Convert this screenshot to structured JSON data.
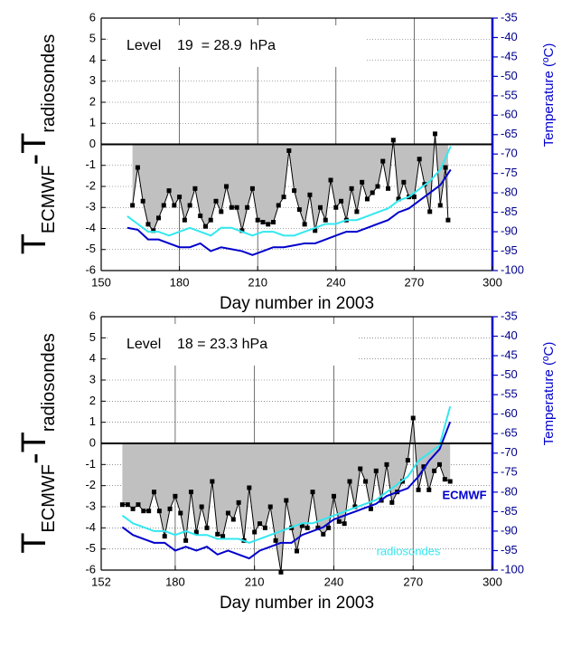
{
  "chart_data": [
    {
      "type": "line",
      "annotation": "Level    19  = 28.9  hPa",
      "xlabel": "Day number in 2003",
      "ylabel": [
        "T",
        "ECMWF",
        "-T",
        "radiosondes"
      ],
      "y2label": "Temperature (ºC)",
      "xlim": [
        150,
        300
      ],
      "xticks": [
        150,
        180,
        210,
        240,
        270,
        300
      ],
      "ylim": [
        -6,
        6
      ],
      "yticks": [
        -6,
        -5,
        -4,
        -3,
        -2,
        -1,
        0,
        1,
        2,
        3,
        4,
        5,
        6
      ],
      "y2lim": [
        -100,
        -35
      ],
      "y2ticks": [
        -100,
        -95,
        -90,
        -85,
        -80,
        -75,
        -70,
        -65,
        -60,
        -55,
        -50,
        -45,
        -40,
        -35
      ],
      "grid": true,
      "fill_color": "#c0c0c0",
      "series": [
        {
          "color": "#000000",
          "marker": "square",
          "fill": true,
          "x": [
            162,
            164,
            166,
            168,
            170,
            172,
            174,
            176,
            178,
            180,
            182,
            184,
            186,
            188,
            190,
            192,
            194,
            196,
            198,
            200,
            202,
            204,
            206,
            208,
            210,
            212,
            214,
            216,
            218,
            220,
            222,
            224,
            226,
            228,
            230,
            232,
            234,
            236,
            238,
            240,
            242,
            244,
            246,
            248,
            250,
            252,
            254,
            256,
            258,
            260,
            262,
            264,
            266,
            268,
            270,
            272,
            274,
            276,
            278,
            280,
            282,
            283
          ],
          "values": [
            -2.9,
            -1.1,
            -2.7,
            -3.8,
            -4.1,
            -3.5,
            -2.9,
            -2.2,
            -2.9,
            -2.5,
            -3.6,
            -2.9,
            -2.1,
            -3.4,
            -3.9,
            -3.6,
            -2.7,
            -3.2,
            -2.0,
            -3.0,
            -3.0,
            -4.1,
            -3.0,
            -2.1,
            -3.6,
            -3.7,
            -3.8,
            -3.7,
            -2.9,
            -2.5,
            -0.3,
            -2.2,
            -3.1,
            -3.8,
            -2.4,
            -4.1,
            -3.0,
            -3.6,
            -1.7,
            -3.0,
            -2.7,
            -3.6,
            -2.1,
            -3.2,
            -1.8,
            -2.6,
            -2.3,
            -2.0,
            -0.8,
            -2.1,
            0.2,
            -2.6,
            -1.8,
            -2.5,
            -2.5,
            -0.7,
            -1.9,
            -3.2,
            0.5,
            -2.9,
            -1.1,
            -3.6
          ]
        },
        {
          "color": "#0000cc",
          "axis": "y2",
          "x": [
            160,
            164,
            168,
            172,
            176,
            180,
            184,
            188,
            192,
            196,
            200,
            204,
            208,
            212,
            216,
            220,
            224,
            228,
            232,
            236,
            240,
            244,
            248,
            252,
            256,
            260,
            264,
            268,
            272,
            276,
            280,
            284
          ],
          "values": [
            -89,
            -89.5,
            -92,
            -92,
            -93,
            -94,
            -94,
            -93,
            -95,
            -94,
            -94.5,
            -95,
            -96,
            -95,
            -94,
            -94,
            -93.5,
            -93,
            -93,
            -92,
            -91,
            -90,
            -90,
            -89,
            -88,
            -87,
            -85,
            -84,
            -82,
            -80,
            -78,
            -74
          ]
        },
        {
          "color": "#33e8f0",
          "axis": "y2",
          "x": [
            160,
            164,
            168,
            172,
            176,
            180,
            184,
            188,
            192,
            196,
            200,
            204,
            208,
            212,
            216,
            220,
            224,
            228,
            232,
            236,
            240,
            244,
            248,
            252,
            256,
            260,
            264,
            268,
            272,
            276,
            280,
            284
          ],
          "values": [
            -86,
            -88,
            -90,
            -90,
            -91,
            -90,
            -89,
            -90,
            -91,
            -89,
            -89,
            -90,
            -91,
            -90,
            -90,
            -91,
            -91,
            -90,
            -89,
            -88,
            -88,
            -87,
            -87,
            -86,
            -85,
            -84,
            -82,
            -81,
            -79,
            -77,
            -74,
            -68
          ]
        }
      ]
    },
    {
      "type": "line",
      "annotation": "Level    18 = 23.3 hPa",
      "xlabel": "Day number in 2003",
      "ylabel": [
        "T",
        "ECMWF",
        "-T",
        "radiosondes"
      ],
      "y2label": "Temperature (ºC)",
      "xlim": [
        152,
        300
      ],
      "xticks": [
        152,
        180,
        210,
        240,
        270,
        300
      ],
      "ylim": [
        -6,
        6
      ],
      "yticks": [
        -6,
        -5,
        -4,
        -3,
        -2,
        -1,
        0,
        1,
        2,
        3,
        4,
        5,
        6
      ],
      "y2lim": [
        -100,
        -35
      ],
      "y2ticks": [
        -100,
        -95,
        -90,
        -85,
        -80,
        -75,
        -70,
        -65,
        -60,
        -55,
        -50,
        -45,
        -40,
        -35
      ],
      "grid": true,
      "fill_color": "#c0c0c0",
      "series": [
        {
          "color": "#000000",
          "marker": "square",
          "fill": true,
          "x": [
            160,
            162,
            164,
            166,
            168,
            170,
            172,
            174,
            176,
            178,
            180,
            182,
            184,
            186,
            188,
            190,
            192,
            194,
            196,
            198,
            200,
            202,
            204,
            206,
            208,
            210,
            212,
            214,
            216,
            218,
            220,
            222,
            224,
            226,
            228,
            230,
            232,
            234,
            236,
            238,
            240,
            242,
            244,
            246,
            248,
            250,
            252,
            254,
            256,
            258,
            260,
            262,
            264,
            266,
            268,
            270,
            272,
            274,
            276,
            278,
            280,
            282,
            284
          ],
          "values": [
            -2.9,
            -2.9,
            -3.1,
            -2.9,
            -3.2,
            -3.2,
            -2.3,
            -3.2,
            -4.4,
            -3.1,
            -2.5,
            -3.3,
            -4.6,
            -2.3,
            -4.2,
            -3.0,
            -4.0,
            -1.8,
            -4.3,
            -4.4,
            -3.3,
            -3.6,
            -2.8,
            -4.6,
            -2.1,
            -4.2,
            -3.8,
            -4.0,
            -3.0,
            -4.6,
            -6.1,
            -2.7,
            -4.0,
            -5.1,
            -3.9,
            -4.0,
            -2.3,
            -4.0,
            -4.3,
            -4.0,
            -2.5,
            -3.7,
            -3.8,
            -1.8,
            -3.0,
            -1.2,
            -1.8,
            -3.1,
            -1.3,
            -2.7,
            -1.0,
            -2.8,
            -2.3,
            -1.8,
            -0.8,
            1.2,
            -2.2,
            -1.1,
            -2.2,
            -1.3,
            -1.0,
            -1.7,
            -1.8
          ]
        },
        {
          "name": "ECMWF",
          "color": "#0000cc",
          "axis": "y2",
          "x": [
            160,
            164,
            168,
            172,
            176,
            180,
            184,
            188,
            192,
            196,
            200,
            204,
            208,
            212,
            216,
            220,
            224,
            228,
            232,
            236,
            240,
            244,
            248,
            252,
            256,
            260,
            264,
            268,
            272,
            276,
            280,
            284
          ],
          "values": [
            -89,
            -91,
            -92,
            -93,
            -93,
            -95,
            -94,
            -95,
            -94,
            -96,
            -95,
            -96,
            -97,
            -95,
            -94,
            -93,
            -93,
            -91,
            -90,
            -89,
            -87,
            -86,
            -85,
            -84,
            -83,
            -81,
            -80,
            -79,
            -76,
            -72,
            -69,
            -62
          ]
        },
        {
          "name": "radiosondes",
          "color": "#33e8f0",
          "axis": "y2",
          "x": [
            160,
            164,
            168,
            172,
            176,
            180,
            184,
            188,
            192,
            196,
            200,
            204,
            208,
            212,
            216,
            220,
            224,
            228,
            232,
            236,
            240,
            244,
            248,
            252,
            256,
            260,
            264,
            268,
            272,
            276,
            280,
            284
          ],
          "values": [
            -86,
            -88,
            -89,
            -90,
            -90,
            -91,
            -90,
            -91,
            -91,
            -92,
            -92,
            -92,
            -93,
            -92,
            -91,
            -90,
            -89,
            -88,
            -88,
            -87,
            -86,
            -85,
            -84,
            -83,
            -82,
            -80,
            -78,
            -76,
            -72,
            -70,
            -68,
            -58
          ]
        }
      ]
    }
  ]
}
